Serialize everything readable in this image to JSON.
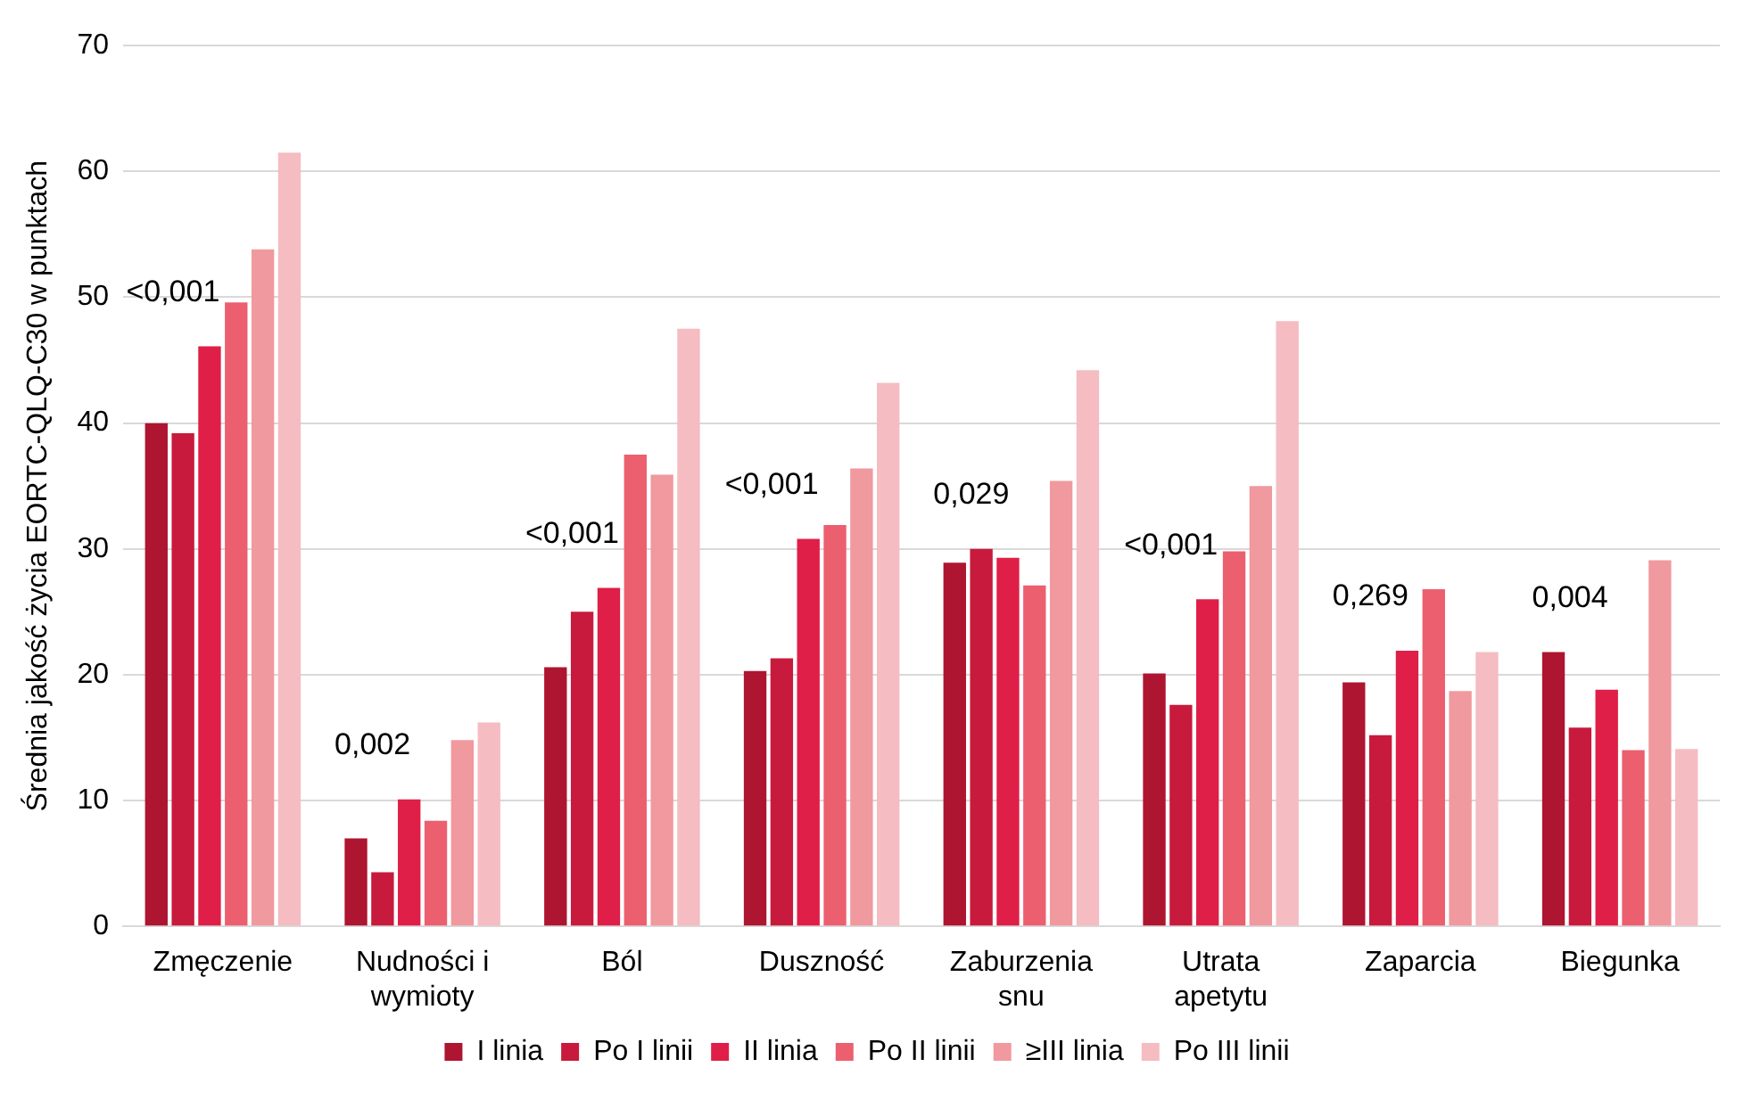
{
  "chart_data": {
    "type": "bar",
    "ylabel": "Średnia jakość życia EORTC-QLQ-C30 w punktach",
    "categories": [
      "Zmęczenie",
      "Nudności i wymioty",
      "Ból",
      "Duszność",
      "Zaburzenia snu",
      "Utrata apetytu",
      "Zaparcia",
      "Biegunka"
    ],
    "series": [
      {
        "name": "I linia",
        "color": "#ae1530",
        "values": [
          40.0,
          7.0,
          20.6,
          20.3,
          28.9,
          20.1,
          19.4,
          21.8
        ]
      },
      {
        "name": "Po I linii",
        "color": "#c81a3c",
        "values": [
          39.2,
          4.3,
          25.0,
          21.3,
          30.0,
          17.6,
          15.2,
          15.8
        ]
      },
      {
        "name": "II linia",
        "color": "#df1f47",
        "values": [
          46.1,
          10.1,
          26.9,
          30.8,
          29.3,
          26.0,
          21.9,
          18.8
        ]
      },
      {
        "name": "Po II linii",
        "color": "#ec5f6f",
        "values": [
          49.6,
          8.4,
          37.5,
          31.9,
          27.1,
          29.8,
          26.8,
          14.0
        ]
      },
      {
        "name": "≥III linia",
        "color": "#f0999e",
        "values": [
          53.8,
          14.8,
          35.9,
          36.4,
          35.4,
          35.0,
          18.7,
          29.1
        ]
      },
      {
        "name": "Po III linii",
        "color": "#f5bcc2",
        "values": [
          61.5,
          16.2,
          47.5,
          43.2,
          44.2,
          48.1,
          21.8,
          14.1
        ]
      }
    ],
    "ylim": [
      0,
      70
    ],
    "yticks": [
      0,
      10,
      20,
      30,
      40,
      50,
      60,
      70
    ],
    "grid": "y",
    "legend": "bottom",
    "annotations": [
      "<0,001",
      "0,002",
      "<0,001",
      "<0,001",
      "0,029",
      "<0,001",
      "0,269",
      "0,004"
    ]
  }
}
